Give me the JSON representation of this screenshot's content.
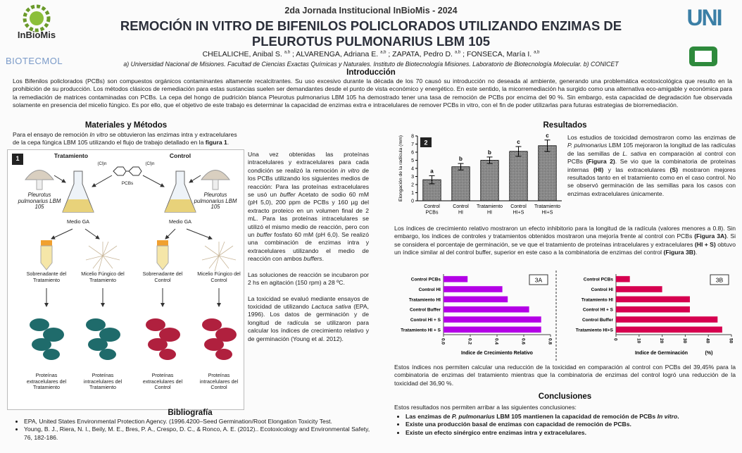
{
  "header": {
    "event": "2da Jornada Institucional InBioMis - 2024",
    "title": [
      "REMOCIÓN IN VITRO DE BIFENILOS POLICLORADOS UTILIZANDO ENZIMAS DE",
      "PLEUROTUS PULMONARIUS LBM 105"
    ],
    "authors": [
      "CHELALICHE, Anibal S. ",
      {
        "text": "a,b",
        "style": "sup"
      },
      " ; ALVARENGA, Adriana E. ",
      {
        "text": "a,b",
        "style": "sup"
      },
      " ; ZAPATA, Pedro D. ",
      {
        "text": "a,b",
        "style": "sup"
      },
      " ; FONSECA, María I. ",
      {
        "text": "a,b",
        "style": "sup"
      }
    ],
    "affiliations": "a) Universidad Nacional de Misiones. Facultad de Ciencias Exactas Químicas y Naturales. Instituto de Biotecnología Misiones. Laboratorio de Biotecnología Molecular.  b) CONICET",
    "logos": {
      "inbiomis": "InBioMis",
      "biotecmol": "BIOTECMOL"
    }
  },
  "introduction": {
    "heading": "Introducción",
    "text": [
      "Los Bifenilos policlorados (PCBs) son compuestos orgánicos contaminantes altamente recalcitrantes. Su uso excesivo durante la década de los 70 causó su introducción no deseada al ambiente, generando una problemática ecotoxicológica que resulto en la prohibición de su producción.  Los métodos clásicos de remediación para estas sustancias suelen ser demandantes desde el punto de vista económico y energético. En este sentido, la micorremediación ha surgido como una alternativa eco-amigable y económica para la remediación de matrices contaminadas con PCBs. La cepa del hongo de pudrición blanca Pleurotus pulmonarius LBM 105 ha demostrado tener una tasa de remoción de PCBs por encima del 90 %. Sin embargo, esta capacidad de degradación fue observada solamente en presencia del micelio fúngico. Es por ello, que el objetivo de este trabajo es determinar la capacidad de enzimas extra e intracelulares de remover PCBs in vitro, con el fin de poder utilizarlas para futuras estrategias de biorremediación."
    ]
  },
  "methods": {
    "heading": "Materiales y Métodos",
    "text": [
      "Para el ensayo de remoción ",
      {
        "text": "In vitro",
        "style": "i"
      },
      " se obtuvieron las enzimas intra y extracelulares de la cepa  fúngica LBM 105 utilizando el flujo de trabajo detallado en la ",
      {
        "text": "figura 1",
        "style": "b"
      },
      "."
    ],
    "column": [
      [
        "Una vez obtenidas las proteínas intracelulares y extracelulares para cada condición se realizó la remoción ",
        {
          "text": "in vitro",
          "style": "i"
        },
        " de los PCBs utilizando los siguientes medios de reacción: Para las proteínas extracelulares se usó un ",
        {
          "text": "buffer",
          "style": "i"
        },
        " Acetato de sodio 60 mM (pH 5,0), 200 ppm de PCBs y 160 µg del extracto proteico en un volumen final de 2 mL. Para las proteínas intracelulares se utilizó el mismo medio de reacción, pero con un ",
        {
          "text": "buffer",
          "style": "i"
        },
        " fosfato 60 mM (pH 6,0). Se realizó una combinación de enzimas intra y extracelulares utilizando el medio de reacción con ambos ",
        {
          "text": "buffers",
          "style": "i"
        },
        "."
      ],
      [
        "Las soluciones de reacción se incubaron por 2 hs en agitación (150 rpm) a 28 ºC."
      ],
      [
        "La toxicidad se evaluó mediante ensayos de toxicidad de utilizando ",
        {
          "text": "Lactuca sativa",
          "style": "i"
        },
        " (EPA, 1996). Los datos de germinación y de longitud de radícula se utilizaron para calcular los índices de crecimiento relativo y de germinación (Young et al. 2012)."
      ]
    ]
  },
  "figure1": {
    "panel": "1",
    "columns": [
      "Tratamiento",
      "Control"
    ],
    "organism": "Pleurotus pulmonarius LBM 105",
    "compound": "PCBs",
    "substituent": "(Cl)n",
    "medium": "Medio GA",
    "fractions": [
      "Sobrenadante del Tratamiento",
      "Micelio Fúngico del Tratamiento",
      "Sobrenadante del Control",
      "Micelio Fúngico del Control"
    ],
    "proteins": [
      "Proteínas extracelulares del Tratamiento",
      "Proteínas intracelulares del Tratamiento",
      "Proteínas extracelulares del Control",
      "Proteínas intracelulares del Control"
    ]
  },
  "bibliography": {
    "heading": "Bibliografía",
    "items": [
      "EPA, United States Environmental Protection Agency. (1996.4200–Seed Germination/Root Elongation Toxicity Test.",
      "Young, B. J., Riera, N. I., Beily, M. E., Bres, P. A., Crespo, D. C., & Ronco, A. E. (2012).. Ecotoxicology and Environmental Safety, 76, 182-186."
    ]
  },
  "results": {
    "heading": "Resultados",
    "text": [
      [
        "Los estudios de toxicidad demostraron como las enzimas de ",
        {
          "text": "P. pulmonarius",
          "style": "i"
        },
        " LBM 105 mejoraron la longitud de las radículas de las semillas de ",
        {
          "text": "L. sativa",
          "style": "i"
        },
        " en comparación al control con PCBs ",
        {
          "text": "(Figura 2)",
          "style": "b"
        },
        ". Se vio que la combinatoria de proteínas internas ",
        {
          "text": "(HI)",
          "style": "b"
        },
        " y las extracelulares ",
        {
          "text": "(S)",
          "style": "b"
        },
        " mostraron mejores resultados tanto en el tratamiento como en el caso control.  No se observó germinación de las semillas para los casos con enzimas extracelulares únicamente."
      ],
      [
        "Los índices de crecimiento relativo mostraron un efecto inhibitorio para la longitud de la radícula (valores menores a 0.8). Sin embargo, los índices de controles y tratamientos obtenidos mostraron una mejoría frente al control con PCBs ",
        {
          "text": "(Figura 3A)",
          "style": "b"
        },
        ". Si se considera el porcentaje de germinación, se ve que el tratamiento de proteínas intracelulares y extracelulares ",
        {
          "text": "(HI + S)",
          "style": "b"
        },
        " obtuvo un índice similar al del control buffer, superior en este caso a la combinatoria de enzimas del control ",
        {
          "text": "(Figura 3B)",
          "style": "b"
        },
        "."
      ],
      [
        "Estos índices nos permiten calcular una reducción de la toxicidad en comparación al control con PCBs del 39,45% para la combinatoria de enzimas del tratamiento mientras que la combinatoria de enzimas del control logró una reducción de la toxicidad del 36,90 %."
      ]
    ]
  },
  "conclusions": {
    "heading": "Conclusiones",
    "intro": "Estos resultados nos permiten arribar a las siguientes conclusiones:",
    "items": [
      [
        "Las enzimas de ",
        {
          "text": "P. pulmonarius",
          "style": "i"
        },
        " LBM 105 mantienen la capacidad de remoción de PCBs ",
        {
          "text": "In vitro",
          "style": "i"
        },
        "."
      ],
      [
        "Existe una producción basal de enzimas con capacidad de remoción de PCBs."
      ],
      [
        "Existe un efecto sinérgico entre enzimas intra y extracelulares."
      ]
    ]
  },
  "chart_data": [
    {
      "type": "bar",
      "panel": "2",
      "categories": [
        "Control PCBs",
        "Control HI",
        "Tratamiento HI",
        "Control HI+S",
        "Tratamiento HI+S"
      ],
      "values": [
        2.6,
        4.2,
        5.0,
        6.1,
        6.8
      ],
      "errors": [
        0.5,
        0.4,
        0.4,
        0.6,
        0.7
      ],
      "annotations": [
        "a",
        "b",
        "b",
        "c",
        "c"
      ],
      "ylabel": "Elongación de la radícula (mm)",
      "ylim": [
        0,
        8
      ],
      "yticks": [
        0,
        1,
        2,
        3,
        4,
        5,
        6,
        7,
        8
      ],
      "color": "#000000"
    },
    {
      "type": "hbar",
      "panel": "3A",
      "categories": [
        "Control PCBs",
        "Control HI",
        "Tratamiento HI",
        "Control Buffer",
        "Control HI + S",
        "Tratamiento HI + S"
      ],
      "values": [
        0.18,
        0.44,
        0.48,
        0.64,
        0.73,
        0.73
      ],
      "xlabel": "Indice de Crecimiento Relativo",
      "xlim": [
        0,
        0.8
      ],
      "xticks": [
        {
          "value": 0,
          "label": "0.0"
        },
        0.2,
        0.4,
        0.6,
        0.8
      ],
      "color": "#b300e6"
    },
    {
      "type": "hbar",
      "panel": "3B",
      "categories": [
        "Control PCBs",
        "Control HI",
        "Tratamiento HI",
        "Control HI + S",
        "Control Buffer",
        "Tratamiento HI+S"
      ],
      "values": [
        6,
        20,
        32,
        32,
        44,
        46
      ],
      "xlabel": "Indice de Germinación",
      "xunit": "(%)",
      "xlim": [
        0,
        50
      ],
      "xticks": [
        0,
        10,
        20,
        30,
        40,
        50
      ],
      "color": "#d6004f"
    }
  ]
}
